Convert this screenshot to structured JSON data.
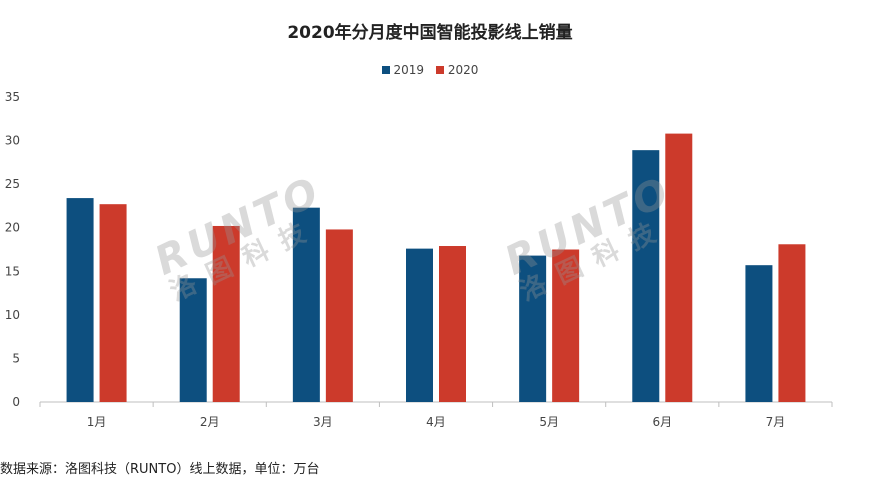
{
  "chart_data": {
    "type": "bar",
    "title": "2020年分月度中国智能投影线上销量",
    "categories": [
      "1月",
      "2月",
      "3月",
      "4月",
      "5月",
      "6月",
      "7月"
    ],
    "series": [
      {
        "name": "2019",
        "color": "#0d4f7f",
        "values": [
          23.4,
          14.2,
          22.3,
          17.6,
          16.8,
          28.9,
          15.7
        ]
      },
      {
        "name": "2020",
        "color": "#cc3a2b",
        "values": [
          22.7,
          20.2,
          19.8,
          17.9,
          17.5,
          30.8,
          18.1
        ]
      }
    ],
    "ylim": [
      0,
      35
    ],
    "yticks": [
      0,
      5,
      10,
      15,
      20,
      25,
      30,
      35
    ],
    "legend_position": "top-center",
    "grid": false
  },
  "watermark": {
    "latin": "RUNTO",
    "cjk": "洛图科技"
  },
  "footer": {
    "source": "数据来源：洛图科技（RUNTO）线上数据，单位：万台"
  }
}
